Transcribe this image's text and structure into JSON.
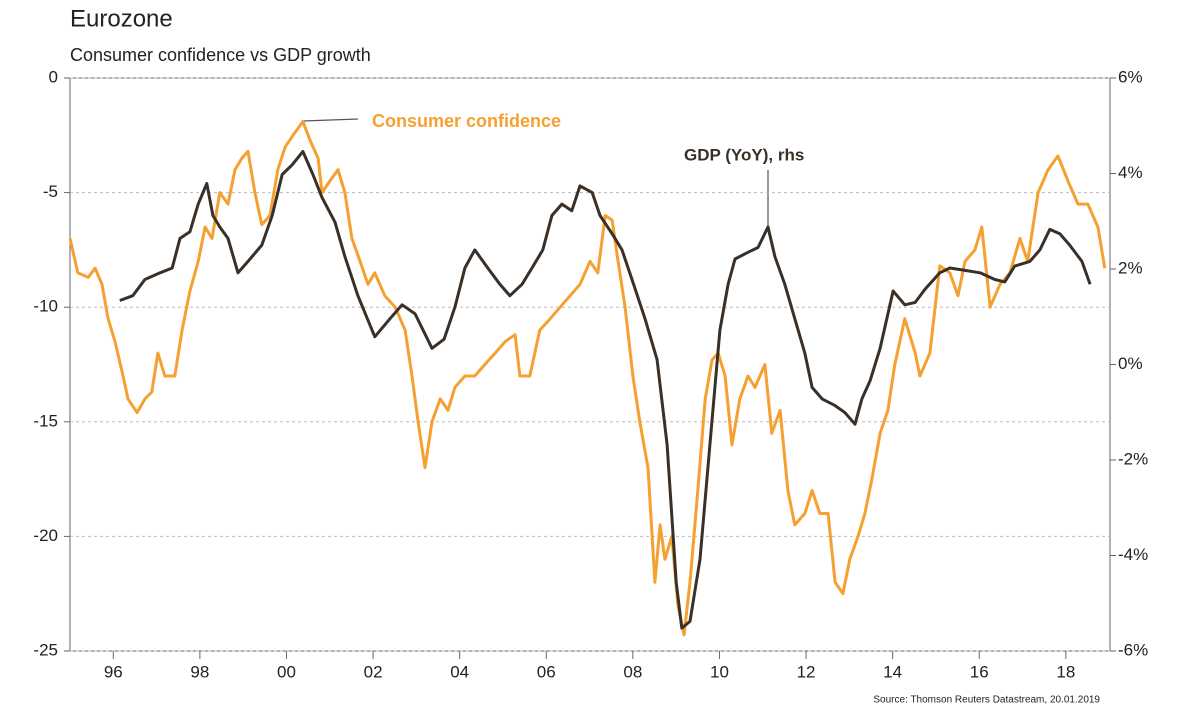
{
  "chart_data": {
    "type": "line",
    "title": "Eurozone",
    "subtitle": "Consumer confidence vs GDP growth",
    "source": "Source: Thomson Reuters Datastream, 20.01.2019",
    "xlim": [
      1995,
      2019.02
    ],
    "xticks": [
      {
        "value": 1996,
        "label": "96"
      },
      {
        "value": 1998,
        "label": "98"
      },
      {
        "value": 2000,
        "label": "00"
      },
      {
        "value": 2002,
        "label": "02"
      },
      {
        "value": 2004,
        "label": "04"
      },
      {
        "value": 2006,
        "label": "06"
      },
      {
        "value": 2008,
        "label": "08"
      },
      {
        "value": 2010,
        "label": "10"
      },
      {
        "value": 2012,
        "label": "12"
      },
      {
        "value": 2014,
        "label": "14"
      },
      {
        "value": 2016,
        "label": "16"
      },
      {
        "value": 2018,
        "label": "18"
      }
    ],
    "ylim": [
      -25,
      0
    ],
    "yticks": [
      -25,
      -20,
      -15,
      -10,
      -5,
      0
    ],
    "y2lim": [
      -6,
      6
    ],
    "y2ticks": [
      {
        "value": -6,
        "label": "-6%"
      },
      {
        "value": -4,
        "label": "-4%"
      },
      {
        "value": -2,
        "label": "-2%"
      },
      {
        "value": 0,
        "label": "0%"
      },
      {
        "value": 2,
        "label": "2%"
      },
      {
        "value": 4,
        "label": "4%"
      },
      {
        "value": 6,
        "label": "6%"
      }
    ],
    "grid": true,
    "series": [
      {
        "name": "Consumer confidence",
        "color": "#f5a030",
        "axis": "y",
        "x": [
          1995.0,
          1995.18,
          1995.42,
          1995.58,
          1995.74,
          1995.88,
          1996.04,
          1996.2,
          1996.34,
          1996.55,
          1996.73,
          1996.89,
          1997.03,
          1997.19,
          1997.42,
          1997.59,
          1997.77,
          1997.96,
          1998.12,
          1998.28,
          1998.46,
          1998.65,
          1998.81,
          1998.97,
          1999.11,
          1999.27,
          1999.43,
          1999.62,
          1999.8,
          1999.97,
          2000.15,
          2000.38,
          2000.54,
          2000.73,
          2000.82,
          2001.0,
          2001.19,
          2001.35,
          2001.51,
          2001.7,
          2001.88,
          2002.04,
          2002.27,
          2002.51,
          2002.74,
          2002.9,
          2003.04,
          2003.2,
          2003.36,
          2003.55,
          2003.73,
          2003.89,
          2004.12,
          2004.35,
          2004.58,
          2004.82,
          2005.05,
          2005.28,
          2005.39,
          2005.62,
          2005.85,
          2006.09,
          2006.32,
          2006.55,
          2006.78,
          2007.01,
          2007.19,
          2007.36,
          2007.52,
          2007.66,
          2007.82,
          2008.0,
          2008.16,
          2008.35,
          2008.51,
          2008.63,
          2008.74,
          2008.9,
          2009.04,
          2009.18,
          2009.32,
          2009.5,
          2009.67,
          2009.83,
          2009.97,
          2010.13,
          2010.29,
          2010.47,
          2010.66,
          2010.82,
          2011.05,
          2011.21,
          2011.4,
          2011.58,
          2011.74,
          2011.97,
          2012.14,
          2012.32,
          2012.51,
          2012.67,
          2012.85,
          2013.01,
          2013.2,
          2013.36,
          2013.52,
          2013.71,
          2013.89,
          2014.05,
          2014.28,
          2014.52,
          2014.63,
          2014.86,
          2015.09,
          2015.32,
          2015.51,
          2015.67,
          2015.9,
          2016.06,
          2016.25,
          2016.48,
          2016.71,
          2016.94,
          2017.12,
          2017.36,
          2017.59,
          2017.82,
          2018.05,
          2018.28,
          2018.51,
          2018.74,
          2018.9
        ],
        "values": [
          -7,
          -8.5,
          -8.7,
          -8.3,
          -9,
          -10.5,
          -11.5,
          -12.8,
          -14,
          -14.6,
          -14,
          -13.7,
          -12,
          -13,
          -13,
          -11,
          -9.3,
          -8,
          -6.5,
          -7,
          -5,
          -5.5,
          -4,
          -3.5,
          -3.2,
          -5,
          -6.4,
          -6,
          -4,
          -3,
          -2.5,
          -1.9,
          -2.7,
          -3.5,
          -5,
          -4.5,
          -4,
          -5,
          -7,
          -8,
          -9,
          -8.5,
          -9.5,
          -10,
          -11,
          -13,
          -15,
          -17,
          -15,
          -14,
          -14.5,
          -13.5,
          -13,
          -13,
          -12.5,
          -12,
          -11.5,
          -11.2,
          -13,
          -13,
          -11,
          -10.5,
          -10,
          -9.5,
          -9,
          -8,
          -8.5,
          -6,
          -6.2,
          -8,
          -10,
          -13,
          -15,
          -17,
          -22,
          -19.5,
          -21,
          -20,
          -23,
          -24.3,
          -22,
          -18,
          -14,
          -12.3,
          -12,
          -13,
          -16,
          -14,
          -13,
          -13.5,
          -12.5,
          -15.5,
          -14.5,
          -18,
          -19.5,
          -19,
          -18,
          -19,
          -19,
          -22,
          -22.5,
          -21,
          -20,
          -19,
          -17.5,
          -15.5,
          -14.5,
          -12.5,
          -10.5,
          -12,
          -13,
          -12,
          -8.2,
          -8.5,
          -9.5,
          -8,
          -7.5,
          -6.5,
          -10,
          -9,
          -8.5,
          -7,
          -8,
          -5,
          -4,
          -3.4,
          -4.5,
          -5.5,
          -5.5,
          -6.5,
          -8.3
        ]
      },
      {
        "name": "GDP (YoY), rhs",
        "color": "#3a3028",
        "axis": "y2",
        "x": [
          1996.15,
          1996.45,
          1996.73,
          1997.08,
          1997.36,
          1997.54,
          1997.77,
          1997.96,
          1998.16,
          1998.3,
          1998.46,
          1998.65,
          1998.88,
          1999.11,
          1999.43,
          1999.67,
          1999.9,
          2000.13,
          2000.38,
          2000.61,
          2000.82,
          2001.12,
          2001.35,
          2001.65,
          2002.04,
          2002.39,
          2002.67,
          2002.97,
          2003.36,
          2003.64,
          2003.89,
          2004.12,
          2004.35,
          2004.65,
          2004.93,
          2005.16,
          2005.44,
          2005.67,
          2005.92,
          2006.13,
          2006.36,
          2006.59,
          2006.78,
          2007.06,
          2007.24,
          2007.52,
          2007.75,
          2007.98,
          2008.28,
          2008.56,
          2008.79,
          2009.0,
          2009.13,
          2009.32,
          2009.55,
          2009.78,
          2010.01,
          2010.2,
          2010.36,
          2010.66,
          2010.89,
          2011.12,
          2011.28,
          2011.51,
          2011.74,
          2011.97,
          2012.14,
          2012.37,
          2012.67,
          2012.9,
          2013.13,
          2013.29,
          2013.48,
          2013.71,
          2014.01,
          2014.28,
          2014.52,
          2014.75,
          2015.09,
          2015.32,
          2015.67,
          2016.02,
          2016.36,
          2016.59,
          2016.82,
          2017.17,
          2017.4,
          2017.63,
          2017.86,
          2018.09,
          2018.37,
          2018.56
        ],
        "values": [
          1.34,
          1.44,
          1.78,
          1.92,
          2.02,
          2.64,
          2.78,
          3.36,
          3.79,
          3.12,
          2.88,
          2.64,
          1.92,
          2.16,
          2.5,
          3.12,
          3.98,
          4.18,
          4.46,
          3.98,
          3.5,
          2.98,
          2.26,
          1.44,
          0.58,
          0.96,
          1.25,
          1.06,
          0.34,
          0.53,
          1.2,
          2.02,
          2.4,
          2.02,
          1.68,
          1.44,
          1.68,
          2.02,
          2.4,
          3.12,
          3.36,
          3.22,
          3.74,
          3.6,
          3.12,
          2.74,
          2.4,
          1.78,
          0.96,
          0.1,
          -1.68,
          -4.56,
          -5.52,
          -5.38,
          -4.08,
          -1.68,
          0.72,
          1.68,
          2.21,
          2.35,
          2.45,
          2.88,
          2.26,
          1.68,
          0.96,
          0.24,
          -0.48,
          -0.72,
          -0.86,
          -1.01,
          -1.25,
          -0.72,
          -0.34,
          0.34,
          1.54,
          1.25,
          1.3,
          1.58,
          1.92,
          2.02,
          1.97,
          1.92,
          1.78,
          1.73,
          2.06,
          2.16,
          2.4,
          2.83,
          2.74,
          2.5,
          2.16,
          1.68
        ]
      }
    ]
  }
}
